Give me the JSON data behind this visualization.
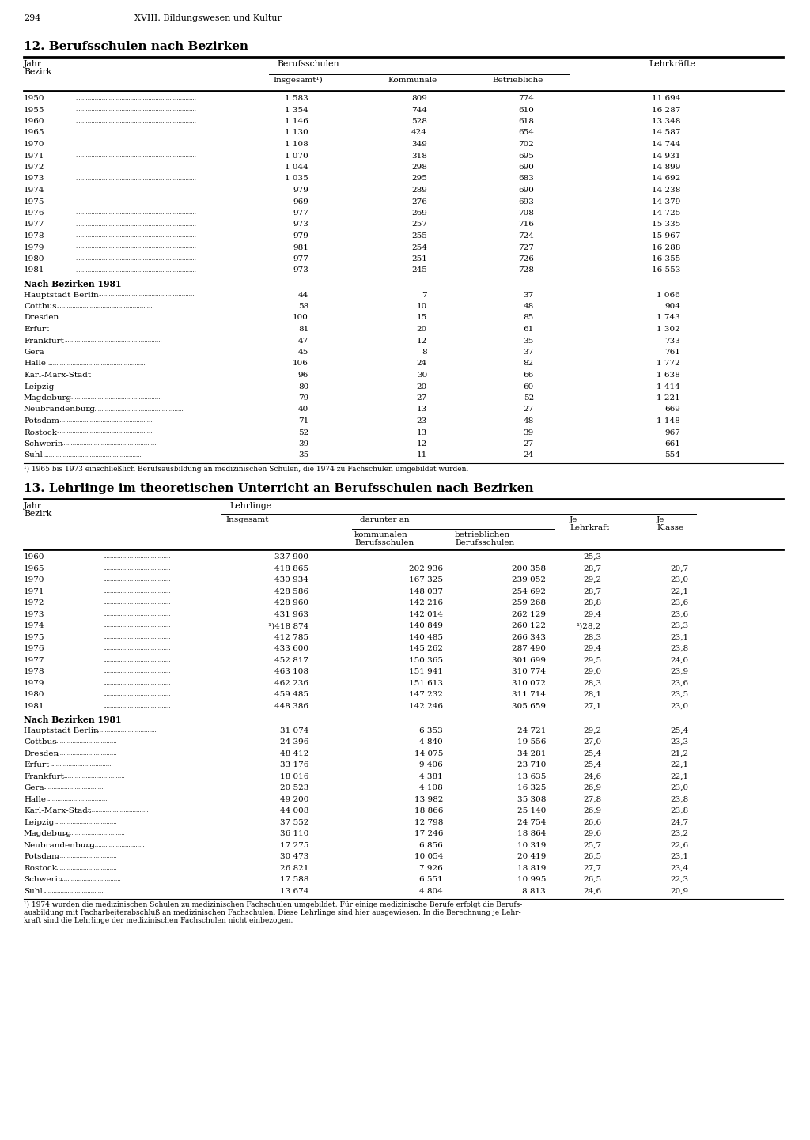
{
  "page_number": "294",
  "page_header": "XVIII. Bildungswesen und Kultur",
  "table1_title": "12. Berufsschulen nach Bezirken",
  "table1_years": [
    "1950",
    "1955",
    "1960",
    "1965",
    "1970",
    "1971",
    "1972",
    "1973",
    "1974",
    "1975",
    "1976",
    "1977",
    "1978",
    "1979",
    "1980",
    "1981"
  ],
  "table1_data": [
    [
      "1 583",
      "809",
      "774",
      "11 694"
    ],
    [
      "1 354",
      "744",
      "610",
      "16 287"
    ],
    [
      "1 146",
      "528",
      "618",
      "13 348"
    ],
    [
      "1 130",
      "424",
      "654",
      "14 587"
    ],
    [
      "1 108",
      "349",
      "702",
      "14 744"
    ],
    [
      "1 070",
      "318",
      "695",
      "14 931"
    ],
    [
      "1 044",
      "298",
      "690",
      "14 899"
    ],
    [
      "1 035",
      "295",
      "683",
      "14 692"
    ],
    [
      "979",
      "289",
      "690",
      "14 238"
    ],
    [
      "969",
      "276",
      "693",
      "14 379"
    ],
    [
      "977",
      "269",
      "708",
      "14 725"
    ],
    [
      "973",
      "257",
      "716",
      "15 335"
    ],
    [
      "979",
      "255",
      "724",
      "15 967"
    ],
    [
      "981",
      "254",
      "727",
      "16 288"
    ],
    [
      "977",
      "251",
      "726",
      "16 355"
    ],
    [
      "973",
      "245",
      "728",
      "16 553"
    ]
  ],
  "table1_bezirke_title": "Nach Bezirken 1981",
  "table1_bezirke": [
    [
      "Hauptstadt Berlin",
      "44",
      "7",
      "37",
      "1 066"
    ],
    [
      "Cottbus",
      "58",
      "10",
      "48",
      "904"
    ],
    [
      "Dresden",
      "100",
      "15",
      "85",
      "1 743"
    ],
    [
      "Erfurt",
      "81",
      "20",
      "61",
      "1 302"
    ],
    [
      "Frankfurt",
      "47",
      "12",
      "35",
      "733"
    ],
    [
      "Gera",
      "45",
      "8",
      "37",
      "761"
    ],
    [
      "Halle",
      "106",
      "24",
      "82",
      "1 772"
    ],
    [
      "Karl-Marx-Stadt",
      "96",
      "30",
      "66",
      "1 638"
    ],
    [
      "Leipzig",
      "80",
      "20",
      "60",
      "1 414"
    ],
    [
      "Magdeburg",
      "79",
      "27",
      "52",
      "1 221"
    ],
    [
      "Neubrandenburg",
      "40",
      "13",
      "27",
      "669"
    ],
    [
      "Potsdam",
      "71",
      "23",
      "48",
      "1 148"
    ],
    [
      "Rostock",
      "52",
      "13",
      "39",
      "967"
    ],
    [
      "Schwerin",
      "39",
      "12",
      "27",
      "661"
    ],
    [
      "Suhl",
      "35",
      "11",
      "24",
      "554"
    ]
  ],
  "table1_footnote": "¹) 1965 bis 1973 einschließlich Berufsausbildung an medizinischen Schulen, die 1974 zu Fachschulen umgebildet wurden.",
  "table2_title": "13. Lehrlinge im theoretischen Unterricht an Berufsschulen nach Bezirken",
  "table2_years": [
    "1960",
    "1965",
    "1970",
    "1971",
    "1972",
    "1973",
    "1974",
    "1975",
    "1976",
    "1977",
    "1978",
    "1979",
    "1980",
    "1981"
  ],
  "table2_data": [
    [
      "337 900",
      "",
      "",
      "25,3",
      ""
    ],
    [
      "418 865",
      "202 936",
      "200 358",
      "28,7",
      "20,7"
    ],
    [
      "430 934",
      "167 325",
      "239 052",
      "29,2",
      "23,0"
    ],
    [
      "428 586",
      "148 037",
      "254 692",
      "28,7",
      "22,1"
    ],
    [
      "428 960",
      "142 216",
      "259 268",
      "28,8",
      "23,6"
    ],
    [
      "431 963",
      "142 014",
      "262 129",
      "29,4",
      "23,6"
    ],
    [
      "¹)418 874",
      "140 849",
      "260 122",
      "¹)28,2",
      "23,3"
    ],
    [
      "412 785",
      "140 485",
      "266 343",
      "28,3",
      "23,1"
    ],
    [
      "433 600",
      "145 262",
      "287 490",
      "29,4",
      "23,8"
    ],
    [
      "452 817",
      "150 365",
      "301 699",
      "29,5",
      "24,0"
    ],
    [
      "463 108",
      "151 941",
      "310 774",
      "29,0",
      "23,9"
    ],
    [
      "462 236",
      "151 613",
      "310 072",
      "28,3",
      "23,6"
    ],
    [
      "459 485",
      "147 232",
      "311 714",
      "28,1",
      "23,5"
    ],
    [
      "448 386",
      "142 246",
      "305 659",
      "27,1",
      "23,0"
    ]
  ],
  "table2_bezirke_title": "Nach Bezirken 1981",
  "table2_bezirke": [
    [
      "Hauptstadt Berlin",
      "31 074",
      "6 353",
      "24 721",
      "29,2",
      "25,4"
    ],
    [
      "Cottbus",
      "24 396",
      "4 840",
      "19 556",
      "27,0",
      "23,3"
    ],
    [
      "Dresden",
      "48 412",
      "14 075",
      "34 281",
      "25,4",
      "21,2"
    ],
    [
      "Erfurt",
      "33 176",
      "9 406",
      "23 710",
      "25,4",
      "22,1"
    ],
    [
      "Frankfurt",
      "18 016",
      "4 381",
      "13 635",
      "24,6",
      "22,1"
    ],
    [
      "Gera",
      "20 523",
      "4 108",
      "16 325",
      "26,9",
      "23,0"
    ],
    [
      "Halle",
      "49 200",
      "13 982",
      "35 308",
      "27,8",
      "23,8"
    ],
    [
      "Karl-Marx-Stadt",
      "44 008",
      "18 866",
      "25 140",
      "26,9",
      "23,8"
    ],
    [
      "Leipzig",
      "37 552",
      "12 798",
      "24 754",
      "26,6",
      "24,7"
    ],
    [
      "Magdeburg",
      "36 110",
      "17 246",
      "18 864",
      "29,6",
      "23,2"
    ],
    [
      "Neubrandenburg",
      "17 275",
      "6 856",
      "10 319",
      "25,7",
      "22,6"
    ],
    [
      "Potsdam",
      "30 473",
      "10 054",
      "20 419",
      "26,5",
      "23,1"
    ],
    [
      "Rostock",
      "26 821",
      "7 926",
      "18 819",
      "27,7",
      "23,4"
    ],
    [
      "Schwerin",
      "17 588",
      "6 551",
      "10 995",
      "26,5",
      "22,3"
    ],
    [
      "Suhl",
      "13 674",
      "4 804",
      "8 813",
      "24,6",
      "20,9"
    ]
  ],
  "table2_footnote1": "¹) 1974 wurden die medizinischen Schulen zu medizinischen Fachschulen umgebildet. Für einige medizinische Berufe erfolgt die Berufs-",
  "table2_footnote2": "ausbildung mit Facharbeiterabschluß an medizinischen Fachschulen. Diese Lehrlinge sind hier ausgewiesen. In die Berechnung je Lehr-",
  "table2_footnote3": "kraft sind die Lehrlinge der medizinischen Fachschulen nicht einbezogen."
}
